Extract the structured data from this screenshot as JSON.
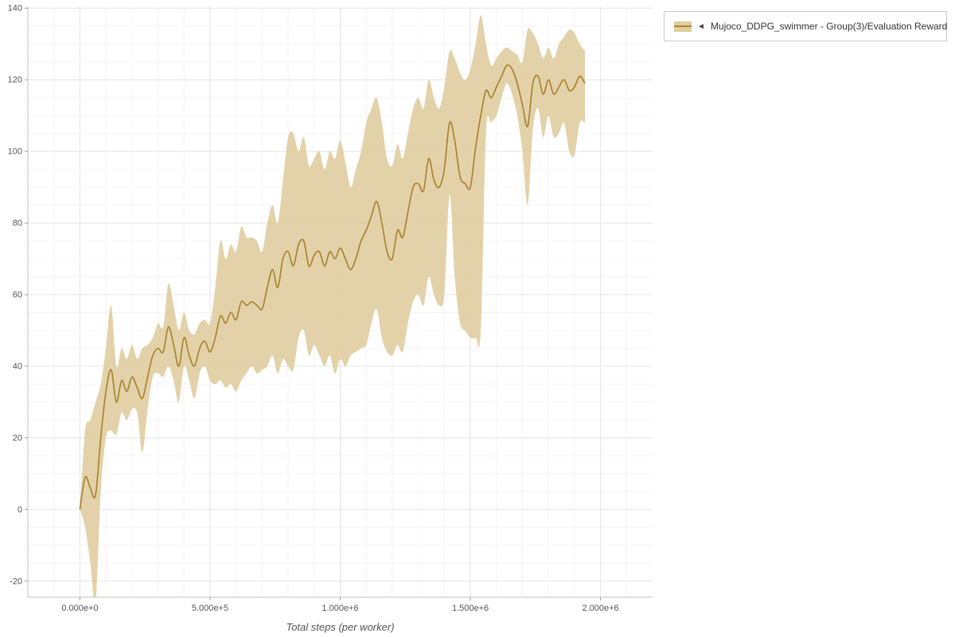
{
  "page": {
    "background": "#ffffff"
  },
  "legend": {
    "marker": "◄",
    "label": "Mujoco_DDPG_swimmer - Group(3)/Evaluation Reward"
  },
  "chart_data": {
    "type": "line",
    "title": "",
    "xlabel": "Total steps (per worker)",
    "ylabel": "",
    "xlim": [
      -200000,
      2200000
    ],
    "ylim": [
      -24.5,
      140.5
    ],
    "grid": "major+minor",
    "legend_position": "top-right-outside",
    "x_ticks": [
      {
        "value": 0,
        "label": "0.000e+0"
      },
      {
        "value": 500000,
        "label": "5.000e+5"
      },
      {
        "value": 1000000,
        "label": "1.000e+6"
      },
      {
        "value": 1500000,
        "label": "1.500e+6"
      },
      {
        "value": 2000000,
        "label": "2.000e+6"
      }
    ],
    "y_ticks": [
      {
        "value": -20,
        "label": "-20"
      },
      {
        "value": 0,
        "label": "0"
      },
      {
        "value": 20,
        "label": "20"
      },
      {
        "value": 40,
        "label": "40"
      },
      {
        "value": 60,
        "label": "60"
      },
      {
        "value": 80,
        "label": "80"
      },
      {
        "value": 100,
        "label": "100"
      },
      {
        "value": 120,
        "label": "120"
      },
      {
        "value": 140,
        "label": "140"
      }
    ],
    "colors": {
      "line": "#a8842f",
      "band": "#e0cda0",
      "grid_major": "#e4e4e4",
      "grid_minor": "#f4f4f4",
      "axis": "#c0c0c0",
      "tick": "#999999",
      "tick_text": "#555555"
    },
    "series": [
      {
        "name": "Mujoco_DDPG_swimmer - Group(3)/Evaluation Reward",
        "band_meaning": "min-max/std envelope across 3 runs",
        "x": [
          0,
          20000,
          40000,
          60000,
          80000,
          100000,
          120000,
          140000,
          160000,
          180000,
          200000,
          220000,
          240000,
          260000,
          280000,
          300000,
          320000,
          340000,
          360000,
          380000,
          400000,
          420000,
          440000,
          460000,
          480000,
          500000,
          520000,
          540000,
          560000,
          580000,
          600000,
          620000,
          640000,
          660000,
          680000,
          700000,
          720000,
          740000,
          760000,
          780000,
          800000,
          820000,
          840000,
          860000,
          880000,
          900000,
          920000,
          940000,
          960000,
          980000,
          1000000,
          1020000,
          1040000,
          1060000,
          1080000,
          1100000,
          1120000,
          1140000,
          1160000,
          1180000,
          1200000,
          1220000,
          1240000,
          1260000,
          1280000,
          1300000,
          1320000,
          1340000,
          1360000,
          1380000,
          1400000,
          1420000,
          1440000,
          1460000,
          1480000,
          1500000,
          1520000,
          1540000,
          1560000,
          1580000,
          1600000,
          1620000,
          1640000,
          1660000,
          1680000,
          1700000,
          1720000,
          1740000,
          1760000,
          1780000,
          1800000,
          1820000,
          1840000,
          1860000,
          1880000,
          1900000,
          1920000,
          1940000
        ],
        "mean": [
          0,
          9,
          6,
          4,
          20,
          33,
          39,
          30,
          36,
          33,
          37,
          34,
          31,
          37,
          43,
          45,
          44,
          51,
          46,
          40,
          48,
          43,
          40,
          45,
          47,
          44,
          48,
          54,
          52,
          55,
          53,
          58,
          57,
          58,
          57,
          56,
          62,
          67,
          62,
          70,
          72,
          68,
          74,
          75,
          68,
          71,
          72,
          68,
          72,
          70,
          73,
          70,
          67,
          70,
          75,
          78,
          82,
          86,
          80,
          72,
          70,
          78,
          76,
          83,
          90,
          91,
          89,
          98,
          92,
          90,
          95,
          108,
          103,
          93,
          91,
          90,
          101,
          110,
          117,
          115,
          118,
          121,
          124,
          123,
          119,
          113,
          107,
          119,
          121,
          116,
          120,
          116,
          118,
          120,
          117,
          118,
          121,
          119
        ],
        "lower": [
          0,
          -5,
          -15,
          -26,
          5,
          20,
          22,
          21,
          27,
          25,
          28,
          27,
          16,
          28,
          37,
          38,
          37,
          40,
          36,
          30,
          40,
          36,
          31,
          38,
          40,
          36,
          35,
          36,
          34,
          35,
          33,
          36,
          38,
          40,
          38,
          39,
          40,
          43,
          38,
          42,
          40,
          39,
          48,
          50,
          43,
          46,
          43,
          40,
          43,
          38,
          42,
          40,
          43,
          44,
          45,
          46,
          52,
          56,
          48,
          44,
          43,
          46,
          44,
          52,
          58,
          60,
          57,
          65,
          60,
          57,
          60,
          88,
          65,
          52,
          50,
          48,
          48,
          50,
          105,
          108,
          110,
          115,
          119,
          116,
          110,
          100,
          85,
          106,
          112,
          104,
          110,
          104,
          105,
          108,
          100,
          99,
          108,
          108
        ],
        "upper": [
          0,
          22,
          25,
          30,
          35,
          45,
          57,
          40,
          45,
          42,
          46,
          42,
          45,
          46,
          48,
          52,
          51,
          63,
          57,
          50,
          55,
          50,
          49,
          52,
          53,
          52,
          62,
          75,
          70,
          74,
          72,
          79,
          76,
          76,
          75,
          72,
          80,
          85,
          80,
          92,
          104,
          105,
          100,
          104,
          96,
          98,
          100,
          95,
          100,
          98,
          103,
          97,
          90,
          95,
          100,
          108,
          112,
          115,
          108,
          98,
          96,
          102,
          98,
          105,
          112,
          115,
          112,
          120,
          115,
          112,
          118,
          128,
          126,
          122,
          120,
          123,
          130,
          138,
          130,
          124,
          126,
          128,
          129,
          128,
          127,
          125,
          134,
          133,
          130,
          126,
          129,
          126,
          130,
          132,
          134,
          133,
          130,
          128
        ]
      }
    ]
  }
}
